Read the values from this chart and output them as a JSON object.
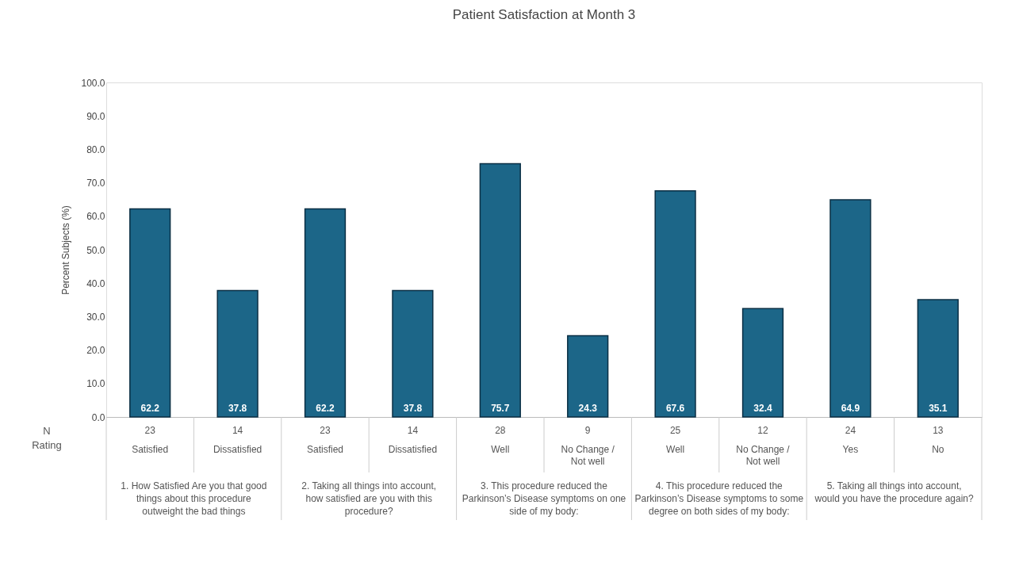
{
  "chart_data": {
    "type": "bar",
    "title": "Patient Satisfaction at Month 3",
    "ylabel": "Percent Subjects (%)",
    "categories": [
      "Satisfied",
      "Dissatisfied",
      "Satisfied",
      "Dissatisfied",
      "Well",
      "No Change / Not well",
      "Well",
      "No Change / Not well",
      "Yes",
      "No"
    ],
    "values": [
      62.2,
      37.8,
      62.2,
      37.8,
      75.7,
      24.3,
      67.6,
      32.4,
      64.9,
      35.1
    ],
    "color": "#1c6688",
    "ylim": [
      0,
      100
    ],
    "yticks": [
      {
        "value": 0,
        "label": "0.0"
      },
      {
        "value": 10,
        "label": "10.0"
      },
      {
        "value": 20,
        "label": "20.0"
      },
      {
        "value": 30,
        "label": "30.0"
      },
      {
        "value": 40,
        "label": "40.0"
      },
      {
        "value": 50,
        "label": "50.0"
      },
      {
        "value": 60,
        "label": "60.0"
      },
      {
        "value": 70,
        "label": "70.0"
      },
      {
        "value": 80,
        "label": "80.0"
      },
      {
        "value": 90,
        "label": "90.0"
      },
      {
        "value": 100,
        "label": "100.0"
      }
    ],
    "data_labels": true,
    "annotations": [
      "N",
      "Rating",
      "23",
      "14",
      "23",
      "14",
      "28",
      "9",
      "25",
      "12",
      "24",
      "13",
      "1. How Satisfied Are you that good things about this procedure outweight the bad things",
      "2. Taking all things into account, how satisfied are you with this procedure?",
      "3. This procedure reduced the Parkinson’s Disease symptoms on one side of my body:",
      "4. This procedure reduced the Parkinson’s Disease symptoms to some degree on both sides of my body:",
      "5. Taking all things into account, would you have the procedure again?"
    ]
  }
}
